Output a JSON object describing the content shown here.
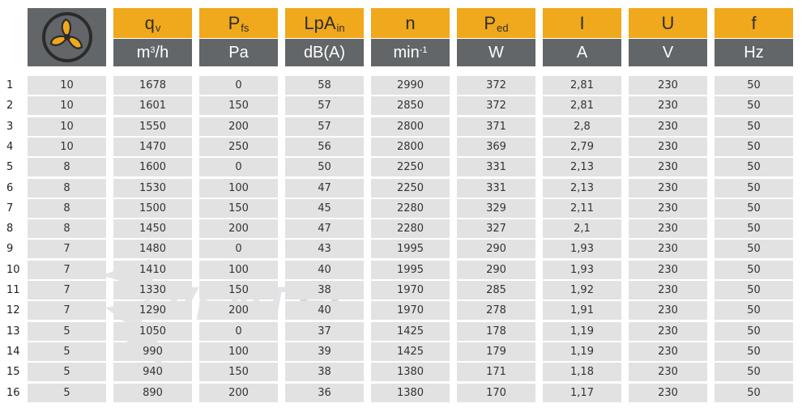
{
  "header": {
    "logo": "fan-icon",
    "columns": [
      {
        "name": "q",
        "sub": "v",
        "unit": "m",
        "unit_sup": "3",
        "unit_tail": "/h"
      },
      {
        "name": "P",
        "sub": "fs",
        "unit": "Pa",
        "unit_sup": "",
        "unit_tail": ""
      },
      {
        "name": "LpA",
        "sub": "in",
        "unit": "dB(A)",
        "unit_sup": "",
        "unit_tail": ""
      },
      {
        "name": "n",
        "sub": "",
        "unit": "min",
        "unit_sup": "-1",
        "unit_tail": ""
      },
      {
        "name": "P",
        "sub": "ed",
        "unit": "W",
        "unit_sup": "",
        "unit_tail": ""
      },
      {
        "name": "I",
        "sub": "",
        "unit": "A",
        "unit_sup": "",
        "unit_tail": ""
      },
      {
        "name": "U",
        "sub": "",
        "unit": "V",
        "unit_sup": "",
        "unit_tail": ""
      },
      {
        "name": "f",
        "sub": "",
        "unit": "Hz",
        "unit_sup": "",
        "unit_tail": ""
      }
    ]
  },
  "rows": [
    {
      "num": "1",
      "c": [
        "10",
        "1678",
        "0",
        "58",
        "2990",
        "372",
        "2,81",
        "230",
        "50"
      ]
    },
    {
      "num": "2",
      "c": [
        "10",
        "1601",
        "150",
        "57",
        "2850",
        "372",
        "2,81",
        "230",
        "50"
      ]
    },
    {
      "num": "3",
      "c": [
        "10",
        "1550",
        "200",
        "57",
        "2800",
        "371",
        "2,8",
        "230",
        "50"
      ]
    },
    {
      "num": "4",
      "c": [
        "10",
        "1470",
        "250",
        "56",
        "2800",
        "369",
        "2,79",
        "230",
        "50"
      ]
    },
    {
      "num": "5",
      "c": [
        "8",
        "1600",
        "0",
        "50",
        "2250",
        "331",
        "2,13",
        "230",
        "50"
      ]
    },
    {
      "num": "6",
      "c": [
        "8",
        "1530",
        "100",
        "47",
        "2250",
        "331",
        "2,13",
        "230",
        "50"
      ]
    },
    {
      "num": "7",
      "c": [
        "8",
        "1500",
        "150",
        "45",
        "2280",
        "329",
        "2,11",
        "230",
        "50"
      ]
    },
    {
      "num": "8",
      "c": [
        "8",
        "1450",
        "200",
        "47",
        "2280",
        "327",
        "2,1",
        "230",
        "50"
      ]
    },
    {
      "num": "9",
      "c": [
        "7",
        "1480",
        "0",
        "43",
        "1995",
        "290",
        "1,93",
        "230",
        "50"
      ]
    },
    {
      "num": "10",
      "c": [
        "7",
        "1410",
        "100",
        "40",
        "1995",
        "290",
        "1,93",
        "230",
        "50"
      ]
    },
    {
      "num": "11",
      "c": [
        "7",
        "1330",
        "150",
        "38",
        "1970",
        "285",
        "1,92",
        "230",
        "50"
      ]
    },
    {
      "num": "12",
      "c": [
        "7",
        "1290",
        "200",
        "40",
        "1970",
        "278",
        "1,91",
        "230",
        "50"
      ]
    },
    {
      "num": "13",
      "c": [
        "5",
        "1050",
        "0",
        "37",
        "1425",
        "178",
        "1,19",
        "230",
        "50"
      ]
    },
    {
      "num": "14",
      "c": [
        "5",
        "990",
        "100",
        "39",
        "1425",
        "179",
        "1,19",
        "230",
        "50"
      ]
    },
    {
      "num": "15",
      "c": [
        "5",
        "940",
        "150",
        "38",
        "1380",
        "171",
        "1,18",
        "230",
        "50"
      ]
    },
    {
      "num": "16",
      "c": [
        "5",
        "890",
        "200",
        "36",
        "1380",
        "170",
        "1,17",
        "230",
        "50"
      ]
    }
  ],
  "watermark": {
    "text_a": "VENT",
    "text_b": "EL"
  },
  "colors": {
    "orange": "#f0a81c",
    "header_gray": "#626669",
    "cell_gray": "#e2e2e2"
  }
}
